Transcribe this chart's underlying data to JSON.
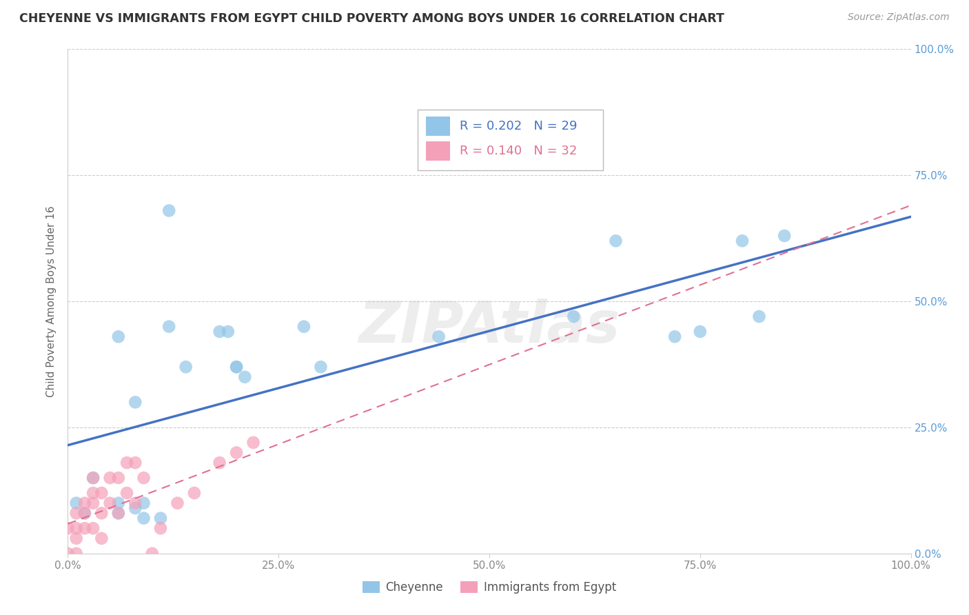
{
  "title": "CHEYENNE VS IMMIGRANTS FROM EGYPT CHILD POVERTY AMONG BOYS UNDER 16 CORRELATION CHART",
  "source": "Source: ZipAtlas.com",
  "ylabel": "Child Poverty Among Boys Under 16",
  "r1": "R = 0.202",
  "n1": "N = 29",
  "r2": "R = 0.140",
  "n2": "N = 32",
  "color_cheyenne": "#92C5E8",
  "color_egypt": "#F4A0B8",
  "trendline_color_cheyenne": "#4472C4",
  "trendline_color_egypt": "#E07090",
  "watermark": "ZIPAtlas",
  "right_tick_color": "#5B9BD5",
  "cheyenne_x": [
    1,
    2,
    3,
    6,
    6,
    6,
    8,
    8,
    9,
    9,
    11,
    12,
    12,
    14,
    18,
    19,
    20,
    20,
    21,
    28,
    30,
    44,
    60,
    65,
    72,
    75,
    80,
    82,
    85
  ],
  "cheyenne_y": [
    10,
    8,
    15,
    43,
    8,
    10,
    9,
    30,
    7,
    10,
    7,
    45,
    68,
    37,
    44,
    44,
    37,
    37,
    35,
    45,
    37,
    43,
    47,
    62,
    43,
    44,
    62,
    47,
    63
  ],
  "egypt_x": [
    0,
    0,
    1,
    1,
    1,
    1,
    2,
    2,
    2,
    3,
    3,
    3,
    3,
    4,
    4,
    4,
    5,
    5,
    6,
    6,
    7,
    7,
    8,
    8,
    9,
    10,
    11,
    13,
    15,
    18,
    20,
    22
  ],
  "egypt_y": [
    0,
    5,
    0,
    3,
    5,
    8,
    5,
    8,
    10,
    5,
    10,
    12,
    15,
    3,
    8,
    12,
    10,
    15,
    8,
    15,
    12,
    18,
    10,
    18,
    15,
    0,
    5,
    10,
    12,
    18,
    20,
    22
  ],
  "xlim": [
    0,
    100
  ],
  "ylim": [
    0,
    100
  ],
  "xticks": [
    0,
    25,
    50,
    75,
    100
  ],
  "yticks": [
    0,
    25,
    50,
    75,
    100
  ],
  "legend_label1": "Cheyenne",
  "legend_label2": "Immigrants from Egypt"
}
